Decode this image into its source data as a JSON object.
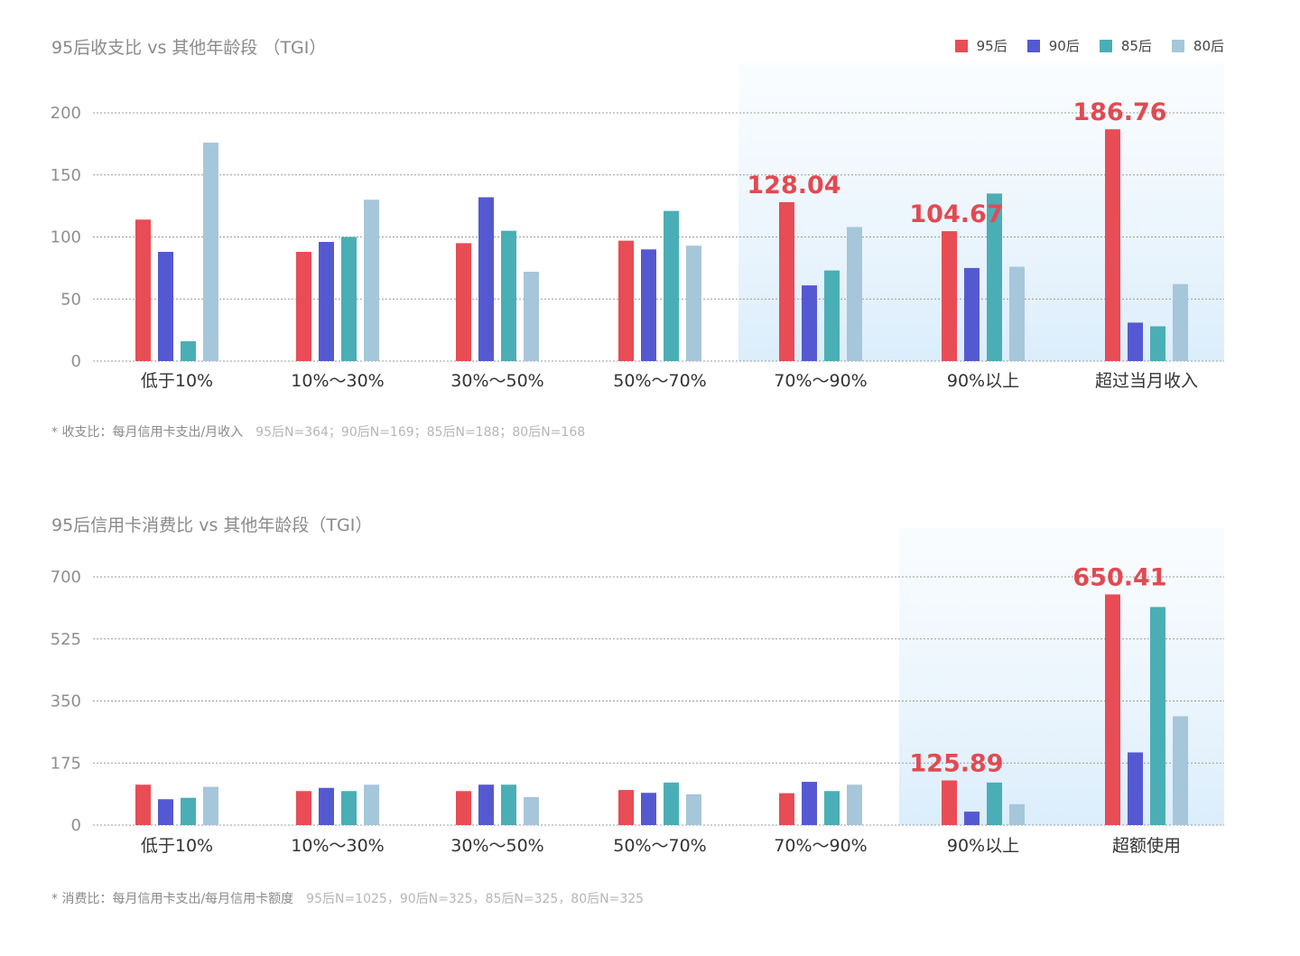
{
  "legend": [
    {
      "label": "95后",
      "color": "#e84c55"
    },
    {
      "label": "90后",
      "color": "#5559d1"
    },
    {
      "label": "85后",
      "color": "#4aaeb6"
    },
    {
      "label": "80后",
      "color": "#a6c6da"
    }
  ],
  "chart_data": [
    {
      "type": "bar",
      "title": "95后收支比 vs 其他年龄段 （TGI）",
      "categories": [
        "低于10%",
        "10%～30%",
        "30%～50%",
        "50%～70%",
        "70%～90%",
        "90%以上",
        "超过当月收入"
      ],
      "series": [
        {
          "name": "95后",
          "values": [
            114,
            88,
            95,
            97,
            128.04,
            104.67,
            186.76
          ]
        },
        {
          "name": "90后",
          "values": [
            88,
            96,
            132,
            90,
            61,
            75,
            31
          ]
        },
        {
          "name": "85后",
          "values": [
            16,
            100,
            105,
            121,
            73,
            135,
            28
          ]
        },
        {
          "name": "80后",
          "values": [
            176,
            130,
            72,
            93,
            108,
            76,
            62
          ]
        }
      ],
      "yticks": [
        0,
        50,
        100,
        150,
        200
      ],
      "ylim": [
        0,
        200
      ],
      "highlight_from_category": 4,
      "data_labels": [
        {
          "category": 4,
          "value": "128.04"
        },
        {
          "category": 5,
          "value": "104.67"
        },
        {
          "category": 6,
          "value": "186.76"
        }
      ],
      "grid": true,
      "legend_position": "top-right",
      "note": "* 收支比：每月信用卡支出/月收入",
      "note_n": "95后N=364；90后N=169；85后N=188；80后N=168"
    },
    {
      "type": "bar",
      "title": "95后信用卡消费比 vs 其他年龄段（TGI）",
      "categories": [
        "低于10%",
        "10%～30%",
        "30%～50%",
        "50%～70%",
        "70%～90%",
        "90%以上",
        "超额使用"
      ],
      "series": [
        {
          "name": "95后",
          "values": [
            114,
            96,
            96,
            99,
            90,
            125.89,
            650.41
          ]
        },
        {
          "name": "90后",
          "values": [
            73,
            105,
            114,
            91,
            122,
            38,
            205
          ]
        },
        {
          "name": "85后",
          "values": [
            77,
            96,
            114,
            120,
            96,
            120,
            615
          ]
        },
        {
          "name": "80后",
          "values": [
            108,
            114,
            79,
            87,
            114,
            59,
            307
          ]
        }
      ],
      "yticks": [
        0,
        175,
        350,
        525,
        700
      ],
      "ylim": [
        0,
        700
      ],
      "highlight_from_category": 5,
      "data_labels": [
        {
          "category": 5,
          "value": "125.89"
        },
        {
          "category": 6,
          "value": "650.41"
        }
      ],
      "grid": true,
      "note": "* 消费比：每月信用卡支出/每月信用卡额度",
      "note_n": "95后N=1025，90后N=325，85后N=325，80后N=325"
    }
  ]
}
